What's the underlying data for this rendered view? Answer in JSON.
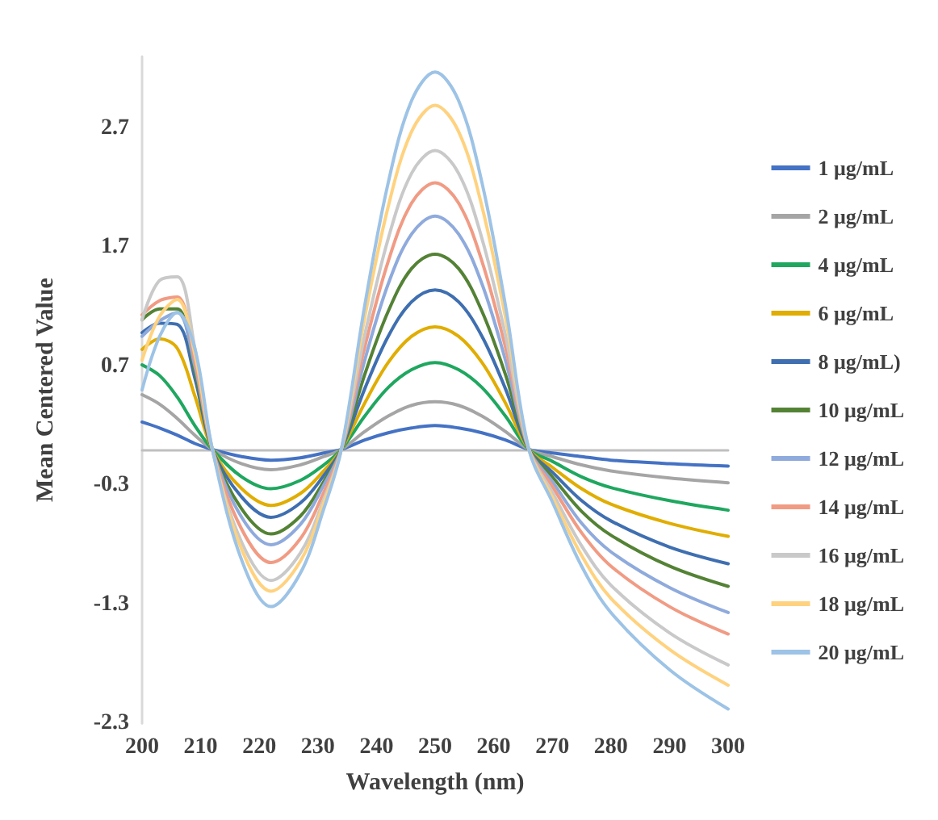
{
  "chart_data": {
    "type": "line",
    "xlabel": "Wavelength (nm)",
    "ylabel": "Mean Centered Value",
    "x": [
      200,
      203,
      206,
      209,
      212,
      217,
      222,
      227,
      231,
      234,
      238,
      242,
      246,
      250,
      254,
      258,
      262,
      266,
      270,
      275,
      280,
      290,
      300
    ],
    "xlim": [
      200,
      300
    ],
    "xticks": [
      200,
      210,
      220,
      230,
      240,
      250,
      260,
      270,
      280,
      290,
      300
    ],
    "ylim": [
      -2.3,
      3.3
    ],
    "yticks": [
      -2.3,
      -1.3,
      -0.3,
      0.7,
      1.7,
      2.7
    ],
    "grid": false,
    "legend": "right",
    "marker": "none",
    "line_style": "solid",
    "series": [
      {
        "name": "1 μg/mL",
        "color": "#4472c4",
        "values": [
          0.23,
          0.18,
          0.12,
          0.05,
          0,
          -0.06,
          -0.09,
          -0.07,
          -0.03,
          0,
          0.08,
          0.14,
          0.18,
          0.2,
          0.18,
          0.14,
          0.08,
          0,
          -0.03,
          -0.06,
          -0.09,
          -0.12,
          -0.14
        ]
      },
      {
        "name": "2 μg/mL",
        "color": "#a5a5a5",
        "values": [
          0.46,
          0.38,
          0.26,
          0.12,
          0,
          -0.12,
          -0.17,
          -0.13,
          -0.06,
          0,
          0.15,
          0.28,
          0.37,
          0.4,
          0.37,
          0.28,
          0.15,
          0,
          -0.06,
          -0.13,
          -0.18,
          -0.24,
          -0.28
        ]
      },
      {
        "name": "4 μg/mL",
        "color": "#1fa75f",
        "values": [
          0.71,
          0.62,
          0.44,
          0.2,
          0,
          -0.23,
          -0.33,
          -0.26,
          -0.13,
          0,
          0.28,
          0.52,
          0.67,
          0.73,
          0.67,
          0.52,
          0.28,
          0,
          -0.1,
          -0.23,
          -0.32,
          -0.43,
          -0.51
        ]
      },
      {
        "name": "6 μg/mL",
        "color": "#e0ad00",
        "values": [
          0.84,
          0.93,
          0.85,
          0.45,
          0,
          -0.33,
          -0.47,
          -0.37,
          -0.18,
          0,
          0.39,
          0.73,
          0.95,
          1.03,
          0.95,
          0.73,
          0.39,
          0,
          -0.15,
          -0.33,
          -0.46,
          -0.62,
          -0.73
        ]
      },
      {
        "name": "8 μg/mL)",
        "color": "#3f6fb0",
        "values": [
          0.98,
          1.06,
          1.05,
          0.6,
          0,
          -0.4,
          -0.57,
          -0.45,
          -0.22,
          0,
          0.51,
          0.95,
          1.24,
          1.34,
          1.24,
          0.95,
          0.51,
          0,
          -0.19,
          -0.43,
          -0.6,
          -0.82,
          -0.96
        ]
      },
      {
        "name": "10 μg/mL",
        "color": "#548235",
        "values": [
          1.09,
          1.18,
          1.18,
          0.66,
          0,
          -0.5,
          -0.71,
          -0.56,
          -0.27,
          0,
          0.63,
          1.16,
          1.52,
          1.64,
          1.52,
          1.16,
          0.63,
          0,
          -0.23,
          -0.52,
          -0.72,
          -0.98,
          -1.15
        ]
      },
      {
        "name": "12 μg/mL",
        "color": "#8faadc",
        "values": [
          0.95,
          1.08,
          1.15,
          0.7,
          0,
          -0.57,
          -0.8,
          -0.63,
          -0.3,
          0,
          0.75,
          1.39,
          1.81,
          1.96,
          1.81,
          1.39,
          0.75,
          0,
          -0.27,
          -0.62,
          -0.86,
          -1.16,
          -1.37
        ]
      },
      {
        "name": "14 μg/mL",
        "color": "#f19b84",
        "values": [
          1.13,
          1.25,
          1.28,
          0.75,
          0,
          -0.67,
          -0.95,
          -0.75,
          -0.36,
          0,
          0.86,
          1.58,
          2.07,
          2.24,
          2.07,
          1.58,
          0.86,
          0,
          -0.31,
          -0.7,
          -0.98,
          -1.32,
          -1.55
        ]
      },
      {
        "name": "16 μg/mL",
        "color": "#c9c9c9",
        "values": [
          1.09,
          1.42,
          1.45,
          0.85,
          0,
          -0.78,
          -1.1,
          -0.87,
          -0.42,
          0,
          0.96,
          1.77,
          2.32,
          2.51,
          2.32,
          1.77,
          0.96,
          0,
          -0.36,
          -0.81,
          -1.14,
          -1.54,
          -1.81
        ]
      },
      {
        "name": "18 μg/mL",
        "color": "#ffd27f",
        "values": [
          0.75,
          1.12,
          1.26,
          0.8,
          0,
          -0.84,
          -1.19,
          -0.94,
          -0.45,
          0,
          1.11,
          2.04,
          2.67,
          2.89,
          2.67,
          2.04,
          1.11,
          0,
          -0.4,
          -0.89,
          -1.25,
          -1.68,
          -1.98
        ]
      },
      {
        "name": "20 μg/mL",
        "color": "#9dc3e6",
        "values": [
          0.5,
          0.95,
          1.15,
          0.85,
          0,
          -0.93,
          -1.32,
          -1.04,
          -0.5,
          0,
          1.21,
          2.24,
          2.93,
          3.17,
          2.93,
          2.24,
          1.21,
          0,
          -0.44,
          -0.98,
          -1.37,
          -1.85,
          -2.18
        ]
      }
    ]
  }
}
